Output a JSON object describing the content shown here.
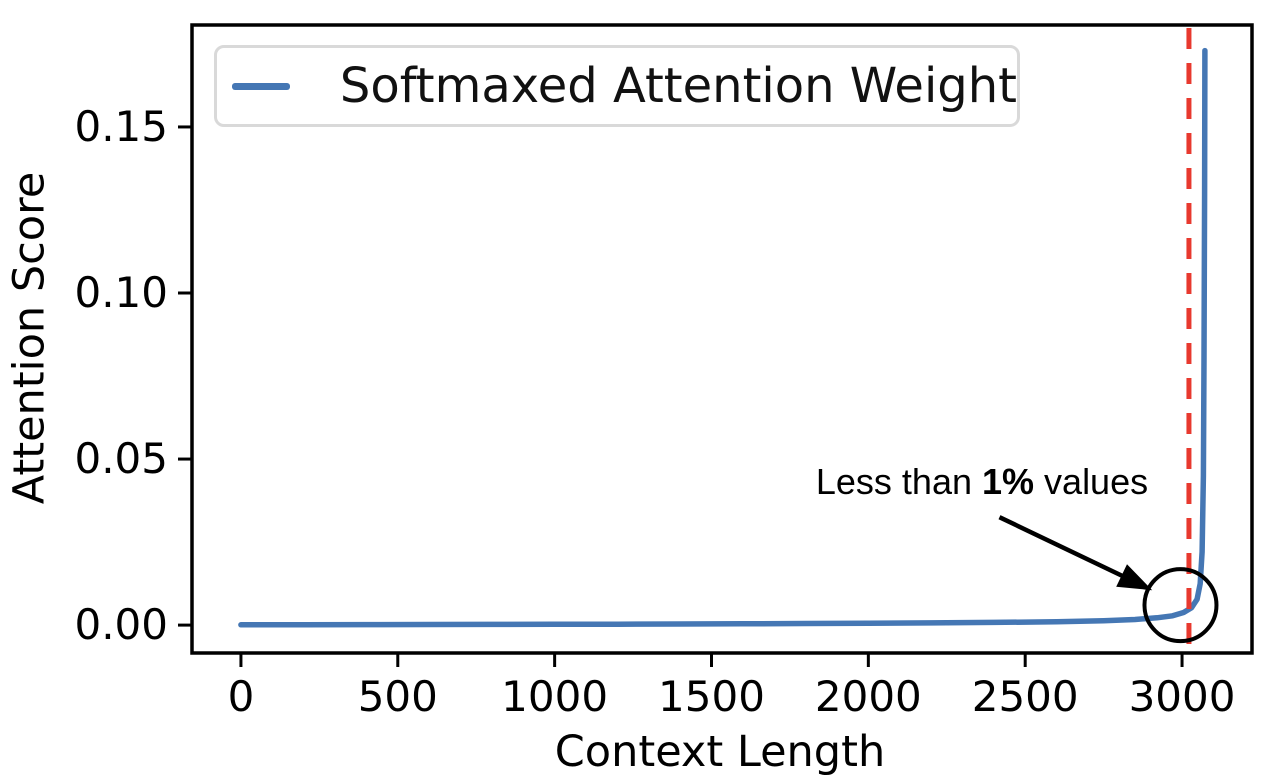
{
  "chart_data": {
    "type": "line",
    "title": "",
    "xlabel": "Context Length",
    "ylabel": "Attention Score",
    "xlim": [
      -156,
      3223
    ],
    "ylim": [
      -0.0084,
      0.1807
    ],
    "grid": false,
    "x_ticks": {
      "values": [
        0,
        500,
        1000,
        1500,
        2000,
        2500,
        3000
      ],
      "labels": [
        "0",
        "500",
        "1000",
        "1500",
        "2000",
        "2500",
        "3000"
      ]
    },
    "y_ticks": {
      "values": [
        0,
        0.05,
        0.1,
        0.15
      ],
      "labels": [
        "0.00",
        "0.05",
        "0.10",
        "0.15"
      ]
    },
    "series": [
      {
        "name": "Softmaxed Attention Weight",
        "color": "#4577b4",
        "x": [
          0,
          200,
          400,
          600,
          800,
          1000,
          1200,
          1400,
          1600,
          1800,
          2000,
          2200,
          2400,
          2600,
          2750,
          2850,
          2920,
          2970,
          3005,
          3030,
          3048,
          3058,
          3064,
          3068,
          3070,
          3072,
          3073
        ],
        "y": [
          0.0001,
          0.00012,
          0.00014,
          0.00017,
          0.0002,
          0.00024,
          0.00028,
          0.00033,
          0.0004,
          0.00047,
          0.00056,
          0.00067,
          0.0008,
          0.001,
          0.0013,
          0.0017,
          0.0022,
          0.0028,
          0.0038,
          0.0052,
          0.0078,
          0.0125,
          0.022,
          0.045,
          0.08,
          0.13,
          0.173
        ]
      }
    ],
    "vline": {
      "x": 3022,
      "color": "#e8392e",
      "style": "dashed"
    },
    "legend": {
      "label": "Softmaxed Attention Weight",
      "position": "upper left"
    },
    "annotation": {
      "text": "Less than 1% values",
      "prefix": "Less than ",
      "bold": "1%",
      "suffix": " values",
      "color": "#000000",
      "arrow": {
        "from": {
          "x": 2418,
          "y": 0.0325
        },
        "to": {
          "x": 2905,
          "y": 0.0105
        }
      },
      "circle": {
        "x": 2995,
        "y": 0.006,
        "radius_px": 36
      }
    },
    "frame_color": "#000000"
  }
}
